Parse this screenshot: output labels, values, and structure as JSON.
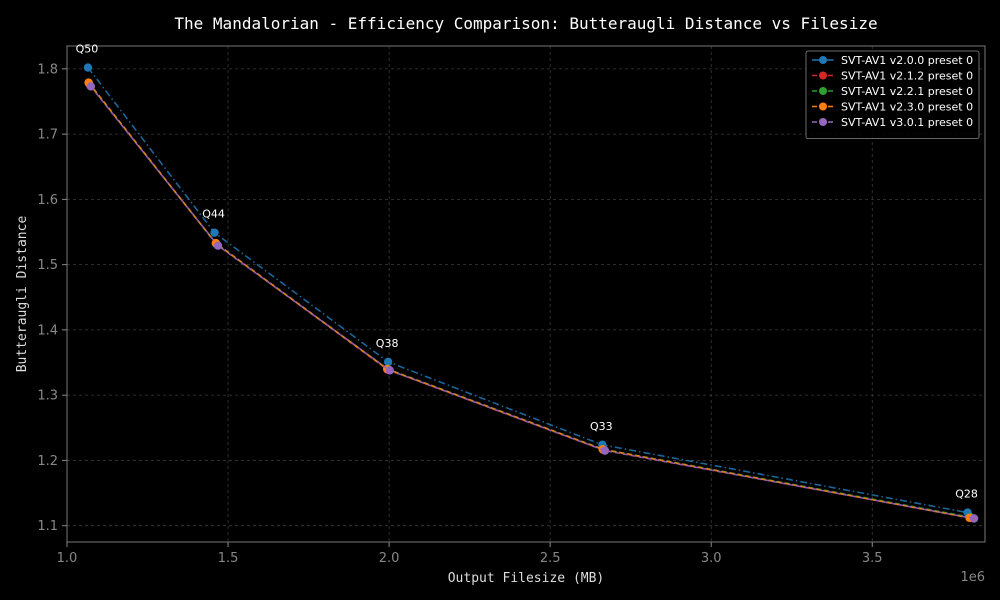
{
  "chart_data": {
    "type": "line",
    "title": "The Mandalorian - Efficiency Comparison: Butteraugli Distance vs Filesize",
    "xlabel": "Output Filesize (MB)",
    "ylabel": "Butteraugli Distance",
    "x_offset_label": "1e6",
    "xlim": [
      1000000,
      3850000
    ],
    "ylim": [
      1.075,
      1.835
    ],
    "x_ticks": [
      1000000,
      1500000,
      2000000,
      2500000,
      3000000,
      3500000
    ],
    "x_tick_labels": [
      "1.0",
      "1.5",
      "2.0",
      "2.5",
      "3.0",
      "3.5"
    ],
    "y_ticks": [
      1.1,
      1.2,
      1.3,
      1.4,
      1.5,
      1.6,
      1.7,
      1.8
    ],
    "y_tick_labels": [
      "1.1",
      "1.2",
      "1.3",
      "1.4",
      "1.5",
      "1.6",
      "1.7",
      "1.8"
    ],
    "grid": true,
    "legend_position": "top-right",
    "annotations": [
      {
        "text": "Q50",
        "x": 1065000,
        "y": 1.802
      },
      {
        "text": "Q44",
        "x": 1458000,
        "y": 1.549
      },
      {
        "text": "Q38",
        "x": 1997000,
        "y": 1.351
      },
      {
        "text": "Q33",
        "x": 2662000,
        "y": 1.224
      },
      {
        "text": "Q28",
        "x": 3796000,
        "y": 1.12
      }
    ],
    "series": [
      {
        "name": "SVT-AV1 v2.0.0 preset 0",
        "color": "#1f77b4",
        "dash": "dashdot",
        "x": [
          1065000,
          1458000,
          1997000,
          2662000,
          3796000
        ],
        "y": [
          1.802,
          1.549,
          1.351,
          1.224,
          1.12
        ]
      },
      {
        "name": "SVT-AV1 v2.1.2 preset 0",
        "color": "#d62728",
        "dash": "dashed",
        "x": [
          1070000,
          1465000,
          1995000,
          2665000,
          3808000
        ],
        "y": [
          1.776,
          1.531,
          1.339,
          1.216,
          1.112
        ]
      },
      {
        "name": "SVT-AV1 v2.2.1 preset 0",
        "color": "#2ca02c",
        "dash": "dashed",
        "x": [
          1068000,
          1463000,
          1996000,
          2664000,
          3805000
        ],
        "y": [
          1.778,
          1.532,
          1.34,
          1.217,
          1.113
        ]
      },
      {
        "name": "SVT-AV1 v2.3.0 preset 0",
        "color": "#ff7f0e",
        "dash": "dashed",
        "x": [
          1067000,
          1462000,
          1994000,
          2663000,
          3802000
        ],
        "y": [
          1.779,
          1.533,
          1.34,
          1.217,
          1.112
        ]
      },
      {
        "name": "SVT-AV1 v3.0.1 preset 0",
        "color": "#9467bd",
        "dash": "dashed",
        "x": [
          1074000,
          1469000,
          2002000,
          2670000,
          3816000
        ],
        "y": [
          1.773,
          1.529,
          1.338,
          1.215,
          1.111
        ]
      }
    ]
  }
}
